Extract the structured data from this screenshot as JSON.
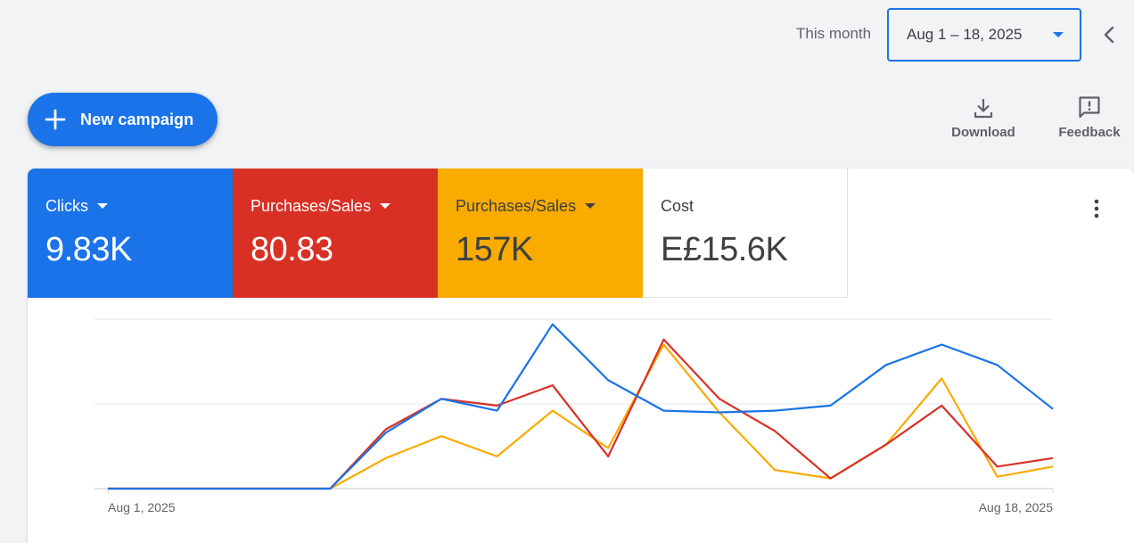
{
  "header": {
    "range_label": "This month",
    "date_range": "Aug 1 – 18, 2025"
  },
  "actions": {
    "new_campaign": "New campaign",
    "download": "Download",
    "feedback": "Feedback"
  },
  "metrics": [
    {
      "label": "Clicks",
      "value": "9.83K",
      "color": "#1a73e8",
      "dropdown": true
    },
    {
      "label": "Purchases/Sales",
      "value": "80.83",
      "color": "#d93025",
      "dropdown": true
    },
    {
      "label": "Purchases/Sales",
      "value": "157K",
      "color": "#f9ab00",
      "dropdown": true
    },
    {
      "label": "Cost",
      "value": "E£15.6K",
      "color": "#ffffff",
      "dropdown": false
    }
  ],
  "chart_data": {
    "type": "line",
    "x": [
      "Aug 1, 2025",
      "Aug 2, 2025",
      "Aug 3, 2025",
      "Aug 4, 2025",
      "Aug 5, 2025",
      "Aug 6, 2025",
      "Aug 7, 2025",
      "Aug 8, 2025",
      "Aug 9, 2025",
      "Aug 10, 2025",
      "Aug 11, 2025",
      "Aug 12, 2025",
      "Aug 13, 2025",
      "Aug 14, 2025",
      "Aug 15, 2025",
      "Aug 16, 2025",
      "Aug 17, 2025",
      "Aug 18, 2025"
    ],
    "x_tick_labels": [
      "Aug 1, 2025",
      "Aug 18, 2025"
    ],
    "series": [
      {
        "color": "#1a73e8",
        "values": [
          0,
          0,
          0,
          0,
          0,
          0.33,
          0.53,
          0.46,
          0.97,
          0.64,
          0.46,
          0.45,
          0.46,
          0.49,
          0.73,
          0.85,
          0.73,
          0.47
        ]
      },
      {
        "color": "#d93025",
        "values": [
          0,
          0,
          0,
          0,
          0,
          0.35,
          0.53,
          0.49,
          0.61,
          0.19,
          0.88,
          0.53,
          0.34,
          0.06,
          0.26,
          0.49,
          0.13,
          0.18
        ]
      },
      {
        "color": "#f9ab00",
        "values": [
          0,
          0,
          0,
          0,
          0,
          0.18,
          0.31,
          0.19,
          0.46,
          0.24,
          0.85,
          0.45,
          0.11,
          0.06,
          0.26,
          0.65,
          0.07,
          0.13
        ]
      }
    ],
    "ylim": [
      0,
      1
    ],
    "grid": true,
    "legend": "none"
  }
}
